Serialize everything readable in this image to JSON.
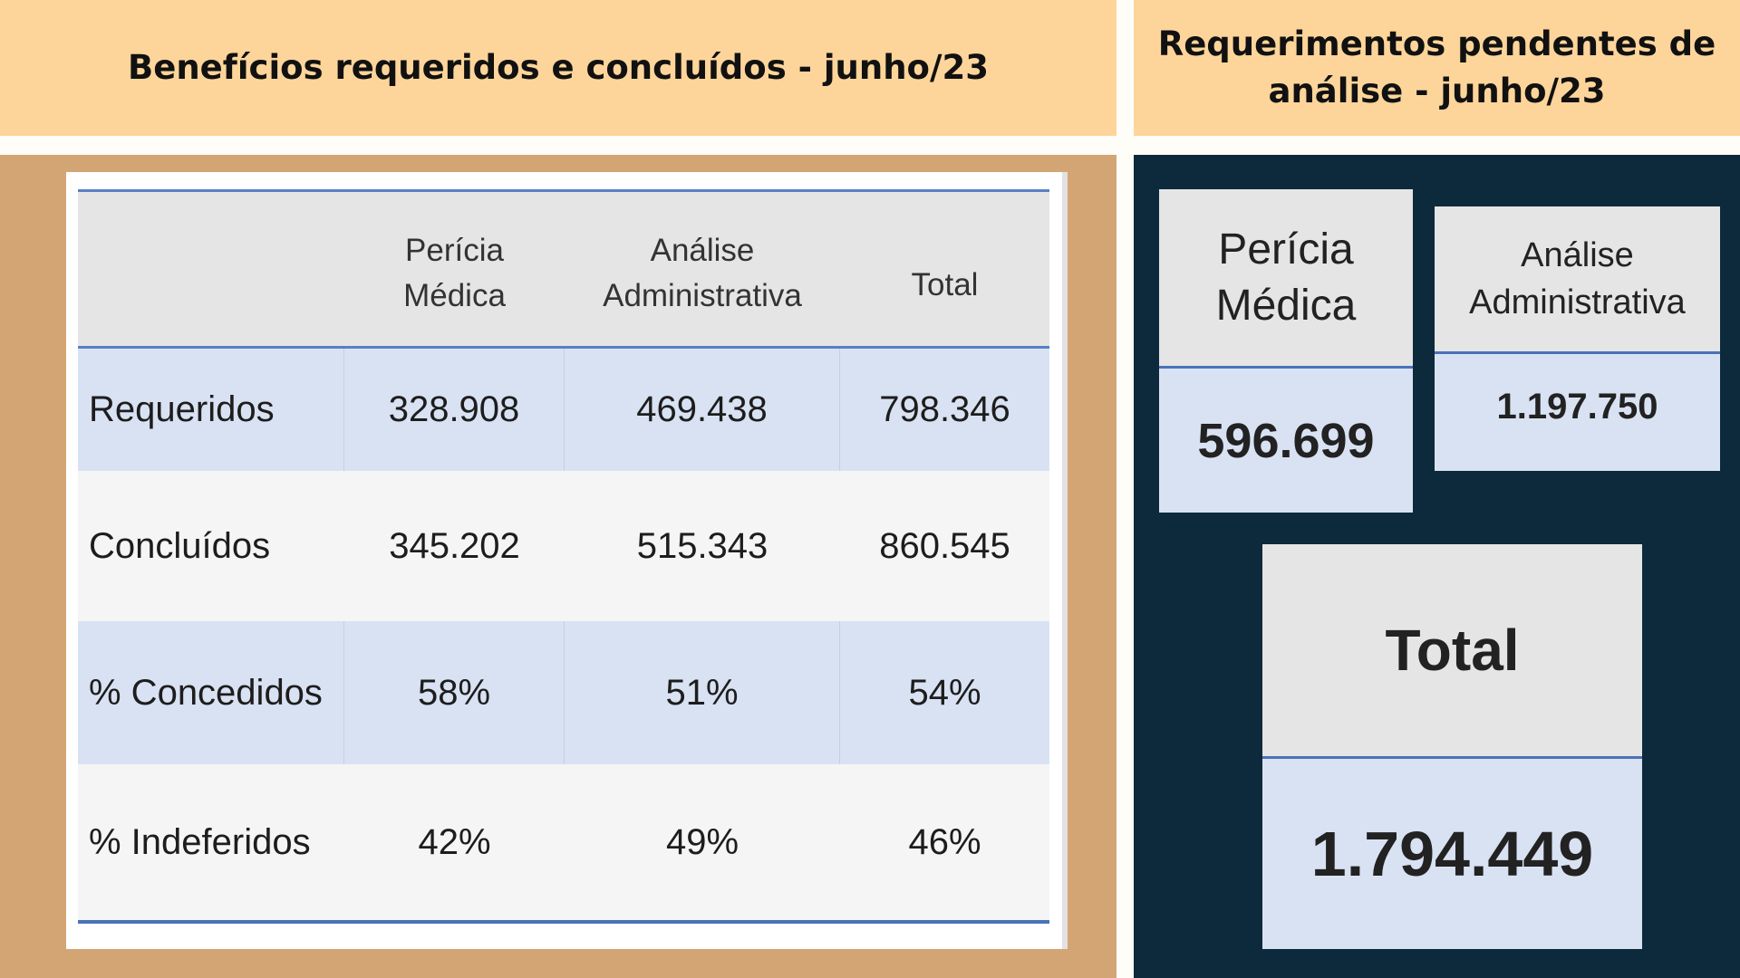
{
  "left_panel": {
    "title": "Benefícios requeridos e concluídos - junho/23",
    "headers": [
      "",
      "Perícia Médica",
      "Análise Administrativa",
      "Total"
    ],
    "rows": [
      {
        "label": "Requeridos",
        "values": [
          "328.908",
          "469.438",
          "798.346"
        ]
      },
      {
        "label": "Concluídos",
        "values": [
          "345.202",
          "515.343",
          "860.545"
        ]
      },
      {
        "label": "% Concedidos",
        "values": [
          "58%",
          "51%",
          "54%"
        ]
      },
      {
        "label": "% Indeferidos",
        "values": [
          "42%",
          "49%",
          "46%"
        ]
      }
    ]
  },
  "right_panel": {
    "title": "Requerimentos pendentes de análise - junho/23",
    "pericia": {
      "label": "Perícia Médica",
      "value": "596.699"
    },
    "analise": {
      "label": "Análise Administrativa",
      "value": "1.197.750"
    },
    "total": {
      "label": "Total",
      "value": "1.794.449"
    }
  },
  "colors": {
    "header_bg": "#fdd59a",
    "left_bg": "#d4a574",
    "right_bg": "#0d2a3c",
    "accent": "#4a72b8"
  }
}
